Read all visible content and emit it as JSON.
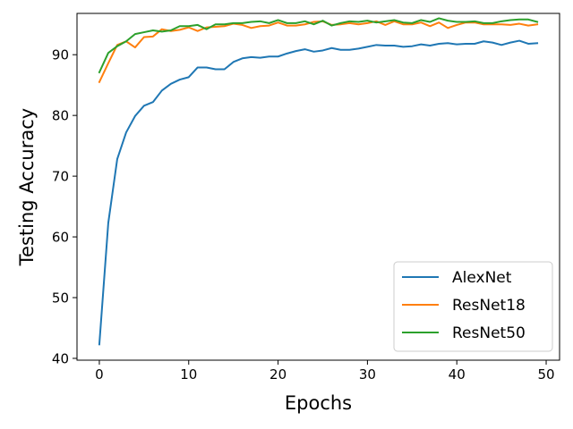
{
  "chart_data": {
    "type": "line",
    "xlabel": "Epochs",
    "ylabel": "Testing Accuracy",
    "xlim": [
      -2.5,
      51.5
    ],
    "ylim": [
      39.7,
      96.8
    ],
    "xticks": [
      0,
      10,
      20,
      30,
      40,
      50
    ],
    "yticks": [
      40,
      50,
      60,
      70,
      80,
      90
    ],
    "grid": false,
    "legend_position": "lower-right",
    "x": [
      0,
      1,
      2,
      3,
      4,
      5,
      6,
      7,
      8,
      9,
      10,
      11,
      12,
      13,
      14,
      15,
      16,
      17,
      18,
      19,
      20,
      21,
      22,
      23,
      24,
      25,
      26,
      27,
      28,
      29,
      30,
      31,
      32,
      33,
      34,
      35,
      36,
      37,
      38,
      39,
      40,
      41,
      42,
      43,
      44,
      45,
      46,
      47,
      48,
      49
    ],
    "series": [
      {
        "name": "AlexNet",
        "color": "#1f77b4",
        "values": [
          42.3,
          62.3,
          72.8,
          77.2,
          79.9,
          81.6,
          82.2,
          84.1,
          85.2,
          85.9,
          86.3,
          87.9,
          87.9,
          87.6,
          87.6,
          88.8,
          89.4,
          89.6,
          89.5,
          89.7,
          89.7,
          90.2,
          90.6,
          90.9,
          90.5,
          90.7,
          91.1,
          90.8,
          90.8,
          91.0,
          91.3,
          91.6,
          91.5,
          91.5,
          91.3,
          91.4,
          91.7,
          91.5,
          91.8,
          91.9,
          91.7,
          91.8,
          91.8,
          92.2,
          92.0,
          91.6,
          92.0,
          92.3,
          91.8,
          91.9
        ]
      },
      {
        "name": "ResNet18",
        "color": "#ff7f0e",
        "values": [
          85.5,
          88.6,
          91.6,
          92.2,
          91.2,
          92.9,
          93.0,
          94.2,
          93.9,
          94.1,
          94.5,
          93.9,
          94.5,
          94.6,
          94.7,
          95.1,
          94.9,
          94.4,
          94.7,
          94.8,
          95.3,
          94.8,
          94.8,
          95.0,
          95.4,
          95.5,
          94.9,
          95.0,
          95.2,
          95.0,
          95.2,
          95.5,
          94.9,
          95.5,
          95.0,
          95.0,
          95.3,
          94.7,
          95.3,
          94.4,
          94.9,
          95.3,
          95.3,
          95.0,
          95.0,
          95.0,
          94.9,
          95.1,
          94.8,
          95.0
        ]
      },
      {
        "name": "ResNet50",
        "color": "#2ca02c",
        "values": [
          87.1,
          90.3,
          91.4,
          92.2,
          93.4,
          93.7,
          94.0,
          93.8,
          94.0,
          94.7,
          94.7,
          94.9,
          94.2,
          95.0,
          95.0,
          95.2,
          95.2,
          95.4,
          95.5,
          95.2,
          95.7,
          95.2,
          95.2,
          95.5,
          95.0,
          95.6,
          94.8,
          95.2,
          95.5,
          95.4,
          95.6,
          95.3,
          95.5,
          95.7,
          95.3,
          95.2,
          95.7,
          95.4,
          96.0,
          95.6,
          95.4,
          95.4,
          95.5,
          95.2,
          95.2,
          95.5,
          95.7,
          95.8,
          95.8,
          95.4
        ]
      }
    ]
  }
}
